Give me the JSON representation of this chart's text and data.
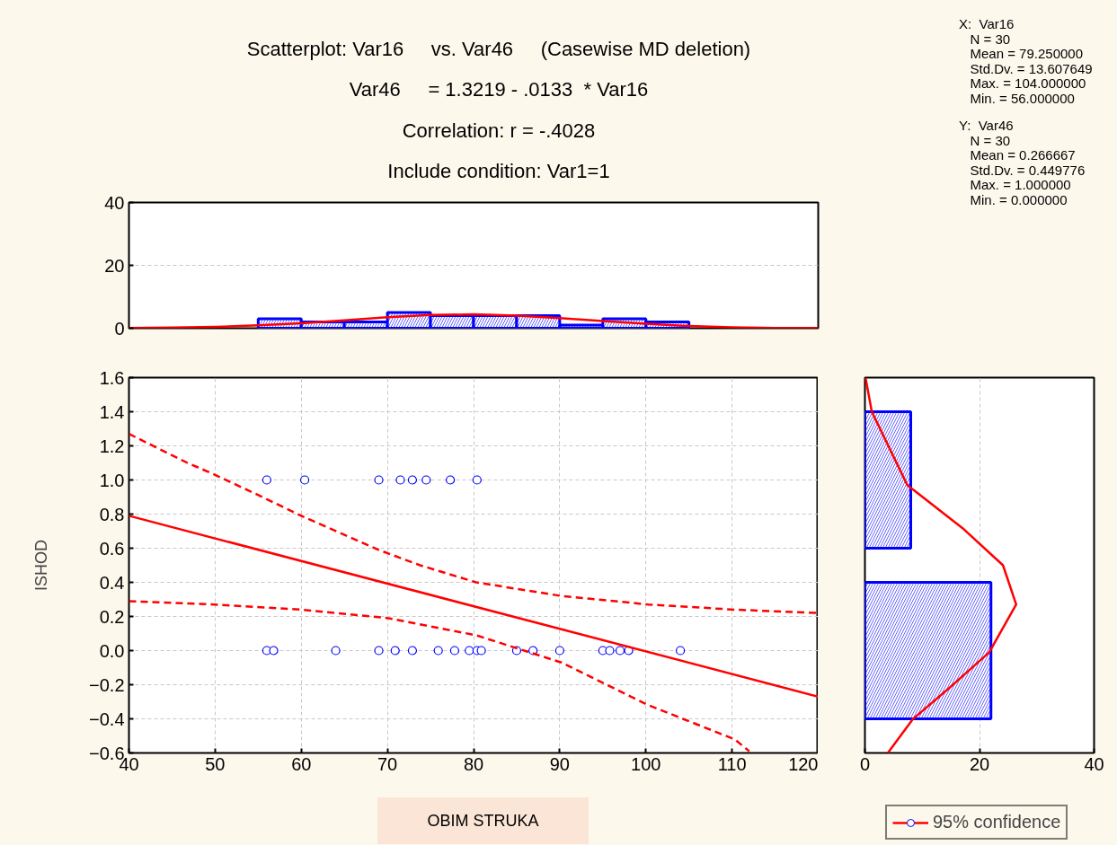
{
  "chart_data": [
    {
      "type": "histogram",
      "title": "Scatterplot: Var16     vs. Var46     (Casewise MD deletion)",
      "subtitle": "Var46     = 1.3219 - .0133  * Var16",
      "annotations": [
        "Correlation: r = -.4028",
        "Include condition: Var1=1",
        "X:  Var16\n   N = 30\n   Mean = 79.250000\n   Std.Dv. = 13.607649\n   Max. = 104.000000\n   Min. = 56.000000",
        "Y:  Var46\n   N = 30\n   Mean = 0.266667\n   Std.Dv. = 0.449776\n   Max. = 1.000000\n   Min. = 0.000000"
      ],
      "color": "#0000ff",
      "bins": [
        55,
        60,
        65,
        70,
        75,
        80,
        85,
        90,
        95,
        100,
        105
      ],
      "values": [
        3,
        2,
        2,
        5,
        4,
        4,
        4,
        1,
        3,
        2
      ],
      "series": [
        {
          "type": "line",
          "color": "#ff0000",
          "x": [
            40,
            45,
            50,
            55,
            60,
            65,
            70,
            75,
            80,
            85,
            90,
            95,
            100,
            105,
            110,
            115,
            120
          ],
          "values": [
            0.1,
            0.2,
            0.4,
            0.9,
            1.6,
            2.5,
            3.5,
            4.2,
            4.4,
            4.0,
            3.2,
            2.3,
            1.4,
            0.7,
            0.3,
            0.1,
            0.1
          ]
        }
      ],
      "xlim": [
        40,
        120
      ],
      "ylim": [
        0,
        40
      ],
      "yticks": [
        0,
        20,
        40
      ],
      "grid": "y",
      "tick_labels": "y"
    },
    {
      "type": "scatter",
      "xlabel": "OBIM STRUKA",
      "ylabel": "ISHOD",
      "series": [
        {
          "type": "scatter",
          "color": "#0000ff",
          "marker": "circle",
          "x": [
            56,
            60.4,
            69,
            71.5,
            72.9,
            74.5,
            77.3,
            80.4,
            56,
            56.8,
            64,
            69,
            70.9,
            72.9,
            75.9,
            77.8,
            79.5,
            80.4,
            80.9,
            85,
            86.9,
            90,
            95,
            95.8,
            97,
            98,
            104
          ],
          "values": [
            1,
            1,
            1,
            1,
            1,
            1,
            1,
            1,
            0,
            0,
            0,
            0,
            0,
            0,
            0,
            0,
            0,
            0,
            0,
            0,
            0,
            0,
            0,
            0,
            0,
            0,
            0
          ]
        },
        {
          "type": "line",
          "color": "#ff0000",
          "line_style": "solid",
          "x": [
            40,
            120
          ],
          "values": [
            0.79,
            -0.27
          ]
        },
        {
          "type": "line",
          "name": "95% confidence",
          "color": "#ff0000",
          "line_style": "dashed",
          "x": [
            40,
            46.8,
            50,
            55.9,
            60,
            69,
            73.8,
            80.3,
            90.2,
            100.3,
            110.3,
            120
          ],
          "values": [
            1.27,
            1.1,
            1.03,
            0.89,
            0.79,
            0.59,
            0.5,
            0.4,
            0.32,
            0.27,
            0.24,
            0.22
          ]
        },
        {
          "type": "line",
          "color": "#ff0000",
          "line_style": "dashed",
          "x": [
            40,
            50,
            60,
            70.1,
            80.3,
            90.2,
            100.3,
            110.3,
            112
          ],
          "values": [
            0.29,
            0.27,
            0.24,
            0.19,
            0.09,
            -0.07,
            -0.32,
            -0.52,
            -0.59
          ]
        }
      ],
      "xlim": [
        40,
        120
      ],
      "xticks": [
        40,
        50,
        60,
        70,
        80,
        90,
        100,
        110,
        120
      ],
      "ylim": [
        -0.6,
        1.6
      ],
      "yticks": [
        -0.6,
        -0.4,
        -0.2,
        {
          "value": 0,
          "label": "0.0"
        },
        0.2,
        0.4,
        0.6,
        0.8,
        {
          "value": 1,
          "label": "1.0"
        },
        1.2,
        1.4,
        1.6
      ],
      "grid": true,
      "legend": "bottom right"
    },
    {
      "type": "histogram",
      "orientation": "horizontal",
      "color": "#0000ff",
      "bins": [
        -0.4,
        0.4,
        0.6,
        1.4
      ],
      "values": [
        22,
        0,
        8
      ],
      "series": [
        {
          "type": "line",
          "color": "#ff0000",
          "x": [
            1.6,
            1.4,
            0.97,
            0.71,
            0.5,
            0.27,
            -0.01,
            -0.22,
            -0.4,
            -0.6
          ],
          "values": [
            0.1,
            1.2,
            7.4,
            17.3,
            24.1,
            26.4,
            21.7,
            14.7,
            8.4,
            4.0
          ]
        }
      ],
      "xlim": [
        0,
        40
      ],
      "xticks": [
        0,
        20,
        40
      ],
      "ylim": [
        -0.6,
        1.6
      ],
      "grid": "x",
      "tick_labels": "x"
    }
  ]
}
